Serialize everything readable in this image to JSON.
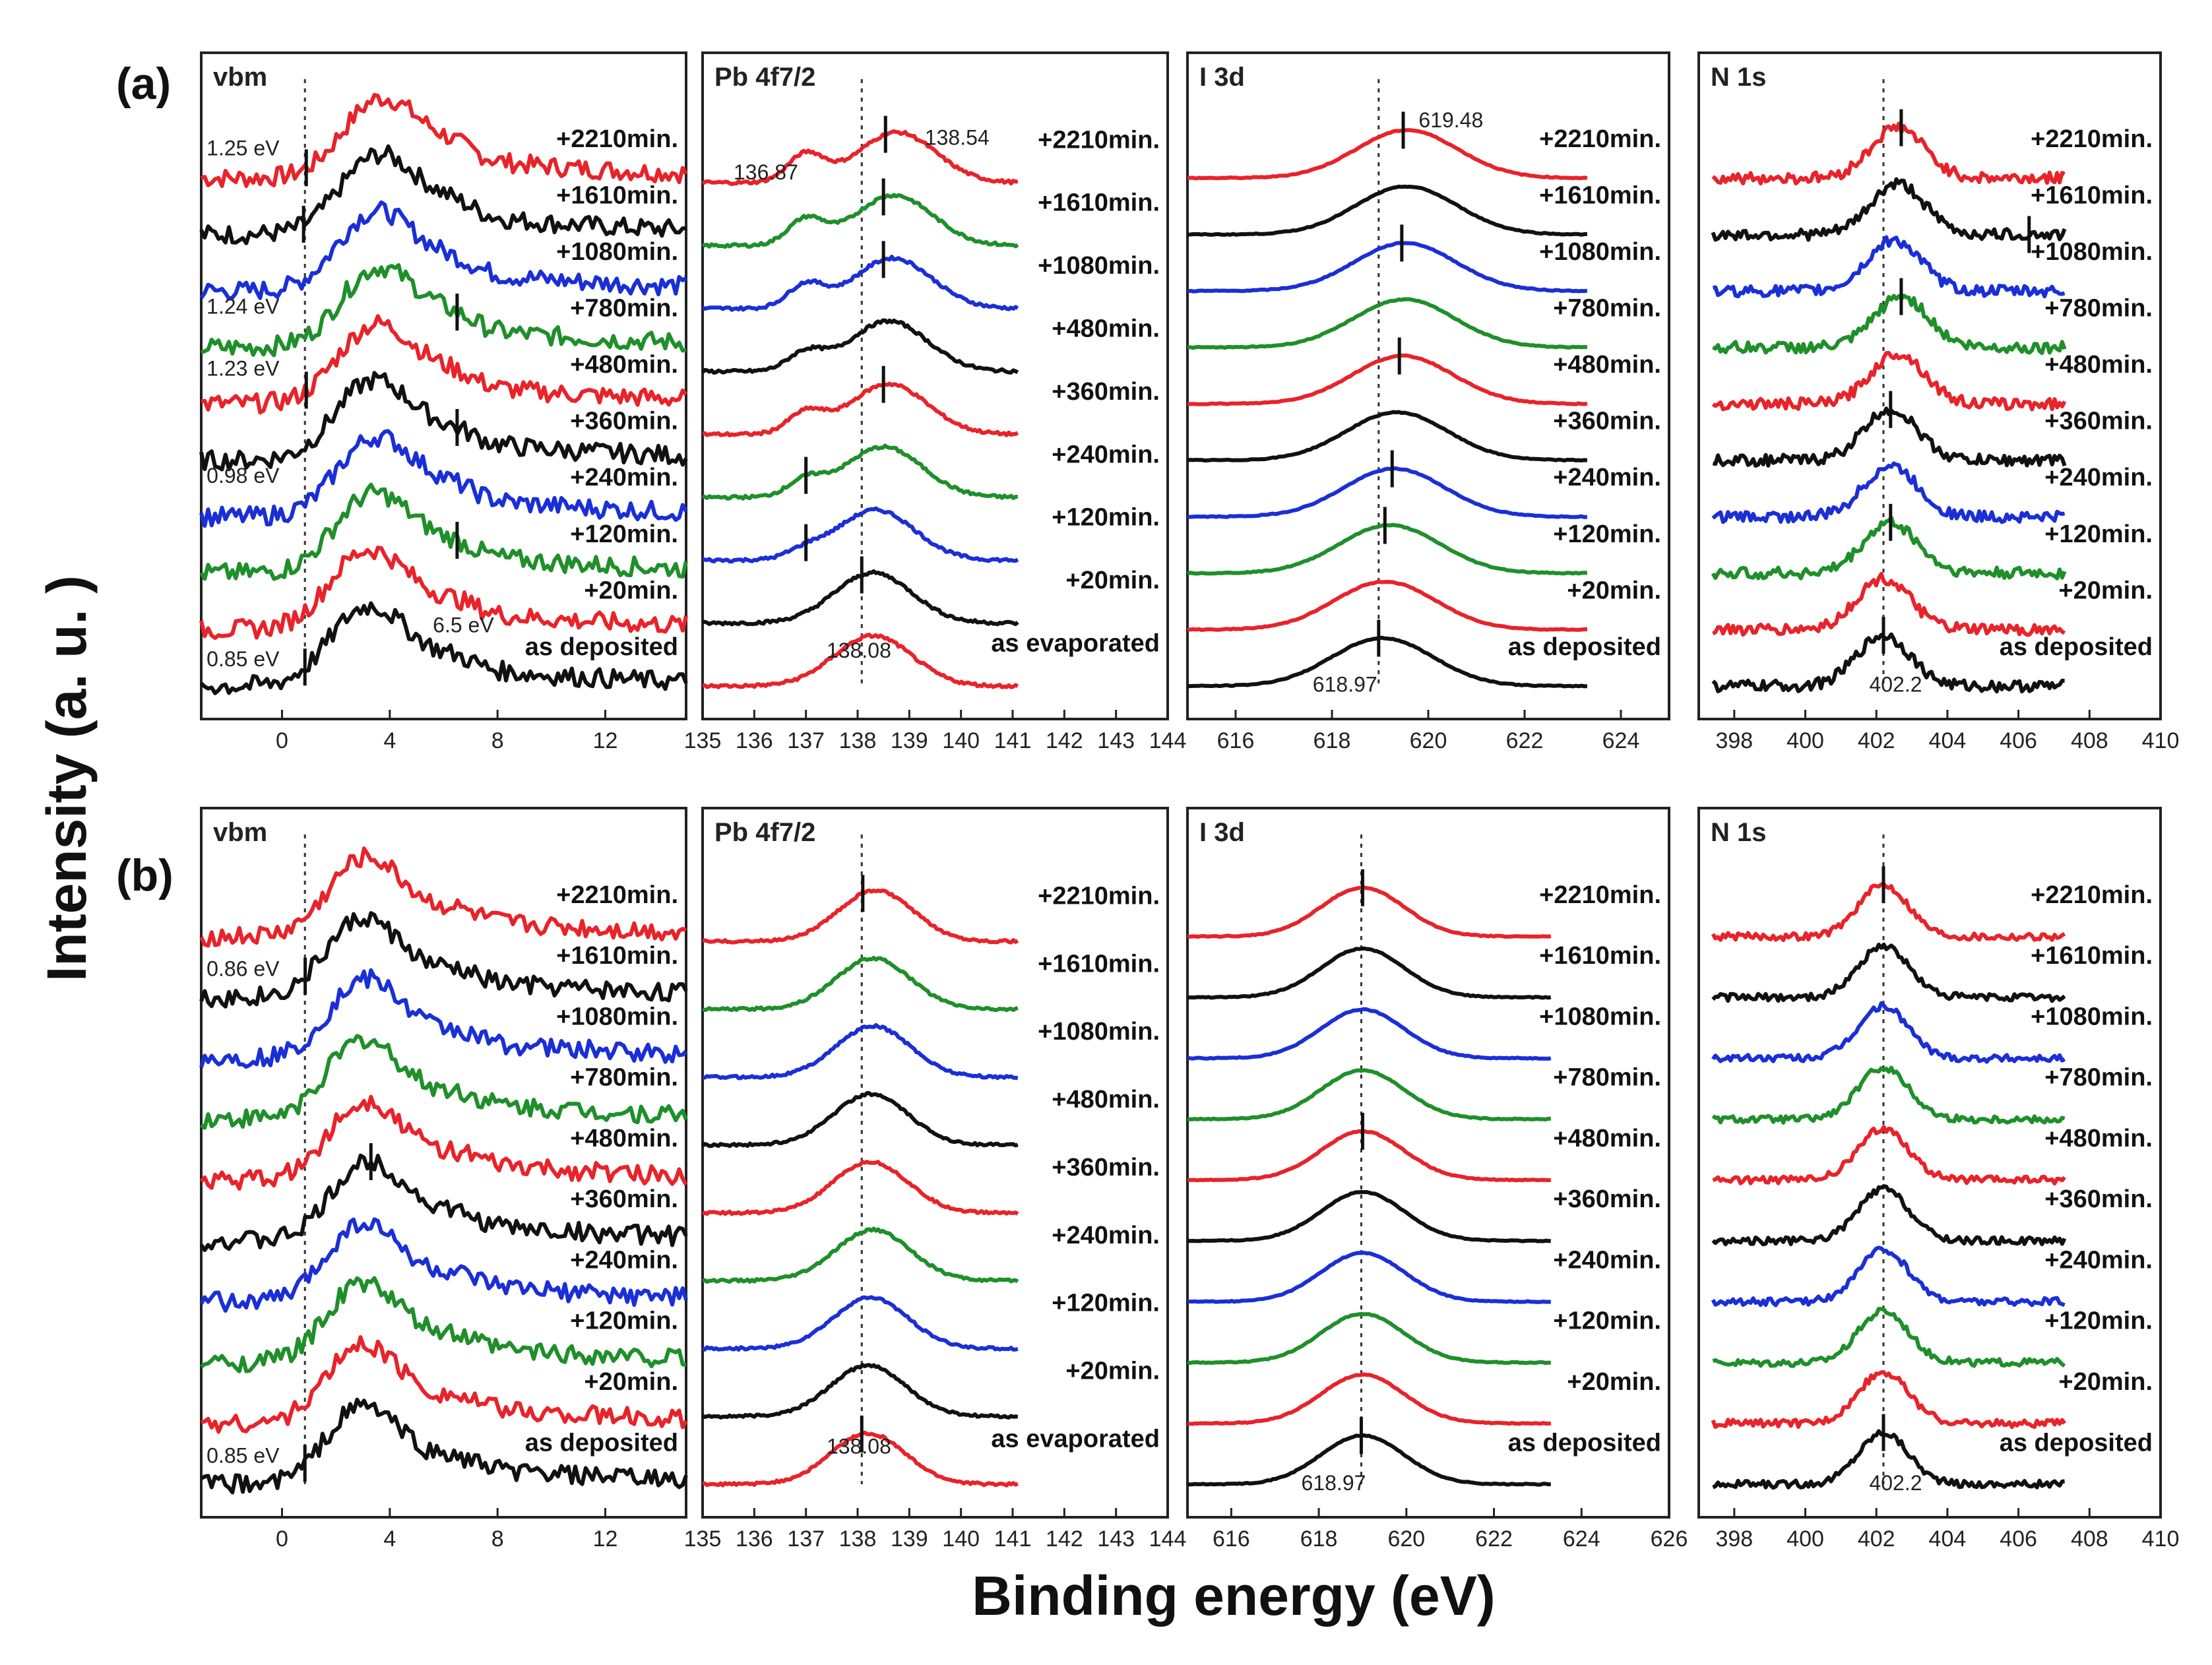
{
  "figure": {
    "ylabel": "Intensity (a. u. )",
    "xlabel": "Binding energy (eV)"
  },
  "colors": {
    "red": "#e8232a",
    "black": "#111111",
    "blue": "#1a2fd6",
    "green": "#1f8f2a"
  },
  "chart_data": [
    {
      "type": "line",
      "row": "(a)",
      "title": "vbm",
      "xlim": [
        -3,
        15
      ],
      "ticks": [
        0,
        4,
        8,
        12
      ],
      "vline": 0.85,
      "peak": 3.2,
      "width": 1.4,
      "spread": 1.2,
      "shape": "vbm",
      "noise": 0.28,
      "series": [
        {
          "name": "+2210min.",
          "color": "red",
          "peakShift": 0.5,
          "mark": 0.9
        },
        {
          "name": "+1610min.",
          "color": "black",
          "peakShift": 0.4,
          "mark": 0.8
        },
        {
          "name": "+1080min.",
          "color": "blue",
          "peakShift": 0.3,
          "mark": null
        },
        {
          "name": "+780min.",
          "color": "green",
          "peakShift": 0.4,
          "mark": 6.5
        },
        {
          "name": "+480min.",
          "color": "red",
          "peakShift": 0.3,
          "mark": 0.9
        },
        {
          "name": "+360min.",
          "color": "black",
          "peakShift": 0.2,
          "mark": 6.5
        },
        {
          "name": "+240min.",
          "color": "blue",
          "peakShift": 0.3,
          "mark": null
        },
        {
          "name": "+120min.",
          "color": "green",
          "peakShift": 0.2,
          "mark": 6.5
        },
        {
          "name": "+20min.",
          "color": "red",
          "peakShift": 0.0,
          "mark": null
        },
        {
          "name": "as deposited",
          "color": "black",
          "peakShift": 0.0,
          "mark": 0.85
        }
      ],
      "annotations": [
        {
          "text": "1.25 eV",
          "x": -2.8,
          "row": 0,
          "dy": 0.4
        },
        {
          "text": "1.24 eV",
          "x": -2.8,
          "row": 3,
          "dy": 0.6
        },
        {
          "text": "1.23 eV",
          "x": -2.8,
          "row": 4,
          "dy": 0.5
        },
        {
          "text": "0.98 eV",
          "x": -2.8,
          "row": 6,
          "dy": 0.6
        },
        {
          "text": "6.5 eV",
          "x": 5.6,
          "row": 8,
          "dy": -0.05
        },
        {
          "text": "0.85 eV",
          "x": -2.8,
          "row": 9,
          "dy": 0.35
        }
      ]
    },
    {
      "type": "line",
      "row": "(a)",
      "title": "Pb 4f7/2",
      "xlim": [
        135,
        144
      ],
      "ticks": [
        135,
        136,
        137,
        138,
        139,
        140,
        141,
        142,
        143,
        144
      ],
      "vline": 138.08,
      "peak": 138.3,
      "width": 0.75,
      "spread": 0.8,
      "shape": "pb",
      "noise": 0.06,
      "xmax": 141.1,
      "series": [
        {
          "name": "+2210min.",
          "color": "red",
          "peakShift": 0.46,
          "shoulder": 0.55,
          "mark": 138.54
        },
        {
          "name": "+1610min.",
          "color": "green",
          "peakShift": 0.4,
          "shoulder": 0.5,
          "mark": 138.5
        },
        {
          "name": "+1080min.",
          "color": "blue",
          "peakShift": 0.38,
          "shoulder": 0.45,
          "mark": 138.5
        },
        {
          "name": "+480min.",
          "color": "black",
          "peakShift": 0.3,
          "shoulder": 0.35,
          "mark": null
        },
        {
          "name": "+360min.",
          "color": "red",
          "peakShift": 0.3,
          "shoulder": 0.4,
          "mark": 138.5
        },
        {
          "name": "+240min.",
          "color": "green",
          "peakShift": 0.2,
          "shoulder": 0.3,
          "mark": 137.0
        },
        {
          "name": "+120min.",
          "color": "blue",
          "peakShift": 0.05,
          "shoulder": 0.15,
          "mark": 137.0
        },
        {
          "name": "+20min.",
          "color": "black",
          "peakShift": 0.0,
          "shoulder": 0.0,
          "mark": 138.08
        },
        {
          "name": "as evaporated",
          "color": "red",
          "peakShift": 0.0,
          "shoulder": 0.0,
          "mark": null
        }
      ],
      "annotations": [
        {
          "text": "136.87",
          "x": 135.6,
          "row": 0,
          "dy": 0.05
        },
        {
          "text": "138.54",
          "x": 139.3,
          "row": 0,
          "dy": 0.6
        },
        {
          "text": "138.08",
          "x": 137.4,
          "row": 8,
          "dy": 0.45
        }
      ]
    },
    {
      "type": "line",
      "row": "(a)",
      "title": "I 3d",
      "xlim": [
        615,
        625
      ],
      "ticks": [
        616,
        618,
        620,
        622,
        624
      ],
      "vline": 618.97,
      "peak": 619.05,
      "width": 1.05,
      "spread": 0.85,
      "shape": "gauss",
      "noise": 0.02,
      "xmin": 615.0,
      "xmax": 623.3,
      "series": [
        {
          "name": "+2210min.",
          "color": "red",
          "peakShift": 0.51,
          "mark": 619.48
        },
        {
          "name": "+1610min.",
          "color": "black",
          "peakShift": 0.5,
          "mark": null
        },
        {
          "name": "+1080min.",
          "color": "blue",
          "peakShift": 0.47,
          "mark": 619.45
        },
        {
          "name": "+780min.",
          "color": "green",
          "peakShift": 0.45,
          "mark": null
        },
        {
          "name": "+480min.",
          "color": "red",
          "peakShift": 0.42,
          "mark": 619.4
        },
        {
          "name": "+360min.",
          "color": "black",
          "peakShift": 0.3,
          "mark": null
        },
        {
          "name": "+240min.",
          "color": "blue",
          "peakShift": 0.25,
          "mark": 619.25
        },
        {
          "name": "+120min.",
          "color": "green",
          "peakShift": 0.15,
          "mark": 619.1
        },
        {
          "name": "+20min.",
          "color": "red",
          "peakShift": 0.05,
          "mark": null
        },
        {
          "name": "as deposited",
          "color": "black",
          "peakShift": 0.0,
          "mark": 618.97
        }
      ],
      "annotations": [
        {
          "text": "619.48",
          "x": 619.8,
          "row": 0,
          "dy": 0.9
        },
        {
          "text": "618.97",
          "x": 617.6,
          "row": 9,
          "dy": -0.1
        }
      ]
    },
    {
      "type": "line",
      "row": "(a)",
      "title": "N 1s",
      "xlim": [
        397,
        410
      ],
      "ticks": [
        398,
        400,
        402,
        404,
        406,
        408,
        410
      ],
      "vline": 402.2,
      "peak": 402.2,
      "width": 0.75,
      "spread": 0.9,
      "shape": "gauss",
      "noise": 0.22,
      "xmin": 397.4,
      "xmax": 407.3,
      "series": [
        {
          "name": "+2210min.",
          "color": "red",
          "peakShift": 0.4,
          "mark": 402.7
        },
        {
          "name": "+1610min.",
          "color": "black",
          "peakShift": 0.4,
          "mark": 406.3
        },
        {
          "name": "+1080min.",
          "color": "blue",
          "peakShift": 0.3,
          "mark": null
        },
        {
          "name": "+780min.",
          "color": "green",
          "peakShift": 0.5,
          "mark": 402.7
        },
        {
          "name": "+480min.",
          "color": "red",
          "peakShift": 0.4,
          "mark": null
        },
        {
          "name": "+360min.",
          "color": "black",
          "peakShift": 0.2,
          "mark": 402.4
        },
        {
          "name": "+240min.",
          "color": "blue",
          "peakShift": 0.2,
          "mark": null
        },
        {
          "name": "+120min.",
          "color": "green",
          "peakShift": 0.2,
          "mark": 402.4
        },
        {
          "name": "+20min.",
          "color": "red",
          "peakShift": 0.0,
          "mark": null
        },
        {
          "name": "as deposited",
          "color": "black",
          "peakShift": 0.0,
          "mark": 402.2
        }
      ],
      "annotations": [
        {
          "text": "402.2",
          "x": 401.8,
          "row": 9,
          "dy": -0.1
        }
      ]
    },
    {
      "type": "line",
      "row": "(b)",
      "title": "vbm",
      "xlim": [
        -3,
        15
      ],
      "ticks": [
        0,
        4,
        8,
        12
      ],
      "vline": 0.85,
      "peak": 3.0,
      "width": 1.3,
      "spread": 1.1,
      "shape": "vbm",
      "noise": 0.28,
      "series": [
        {
          "name": "+2210min.",
          "color": "red",
          "peakShift": 0.1,
          "mark": null
        },
        {
          "name": "+1610min.",
          "color": "black",
          "peakShift": 0.0,
          "mark": 0.86
        },
        {
          "name": "+1080min.",
          "color": "blue",
          "peakShift": 0.1,
          "mark": null
        },
        {
          "name": "+780min.",
          "color": "green",
          "peakShift": 0.0,
          "mark": null
        },
        {
          "name": "+480min.",
          "color": "red",
          "peakShift": 0.1,
          "mark": null
        },
        {
          "name": "+360min.",
          "color": "black",
          "peakShift": 0.2,
          "mark": 3.3
        },
        {
          "name": "+240min.",
          "color": "blue",
          "peakShift": 0.0,
          "mark": null
        },
        {
          "name": "+120min.",
          "color": "green",
          "peakShift": 0.0,
          "mark": null
        },
        {
          "name": "+20min.",
          "color": "red",
          "peakShift": 0.0,
          "mark": null
        },
        {
          "name": "as deposited",
          "color": "black",
          "peakShift": 0.0,
          "mark": 0.85
        }
      ],
      "annotations": [
        {
          "text": "0.86 eV",
          "x": -2.8,
          "row": 1,
          "dy": 0.35
        },
        {
          "text": "0.85 eV",
          "x": -2.8,
          "row": 9,
          "dy": 0.35
        }
      ]
    },
    {
      "type": "line",
      "row": "(b)",
      "title": "Pb 4f7/2",
      "xlim": [
        135,
        144
      ],
      "ticks": [
        135,
        136,
        137,
        138,
        139,
        140,
        141,
        142,
        143,
        144
      ],
      "vline": 138.08,
      "peak": 138.2,
      "width": 0.72,
      "spread": 0.75,
      "shape": "gauss",
      "noise": 0.05,
      "xmax": 141.1,
      "series": [
        {
          "name": "+2210min.",
          "color": "red",
          "peakShift": 0.15,
          "mark": 138.1
        },
        {
          "name": "+1610min.",
          "color": "green",
          "peakShift": 0.1,
          "mark": null
        },
        {
          "name": "+1080min.",
          "color": "blue",
          "peakShift": 0.1,
          "mark": null
        },
        {
          "name": "+480min.",
          "color": "black",
          "peakShift": 0.05,
          "mark": null
        },
        {
          "name": "+360min.",
          "color": "red",
          "peakShift": 0.05,
          "mark": null
        },
        {
          "name": "+240min.",
          "color": "green",
          "peakShift": 0.1,
          "mark": null
        },
        {
          "name": "+120min.",
          "color": "blue",
          "peakShift": 0.05,
          "mark": null
        },
        {
          "name": "+20min.",
          "color": "black",
          "peakShift": 0.0,
          "mark": null
        },
        {
          "name": "as evaporated",
          "color": "red",
          "peakShift": 0.0,
          "mark": 138.08
        }
      ],
      "annotations": [
        {
          "text": "138.08",
          "x": 137.4,
          "row": 8,
          "dy": 0.45
        }
      ]
    },
    {
      "type": "line",
      "row": "(b)",
      "title": "I 3d",
      "xlim": [
        615,
        626
      ],
      "ticks": [
        616,
        618,
        620,
        622,
        624,
        626
      ],
      "vline": 618.97,
      "peak": 619.0,
      "width": 0.95,
      "spread": 0.8,
      "shape": "gauss",
      "noise": 0.02,
      "xmin": 615.0,
      "xmax": 623.3,
      "series": [
        {
          "name": "+2210min.",
          "color": "red",
          "peakShift": 0.0,
          "mark": 619.0
        },
        {
          "name": "+1610min.",
          "color": "black",
          "peakShift": 0.0,
          "mark": null
        },
        {
          "name": "+1080min.",
          "color": "blue",
          "peakShift": 0.0,
          "mark": null
        },
        {
          "name": "+780min.",
          "color": "green",
          "peakShift": 0.0,
          "mark": null
        },
        {
          "name": "+480min.",
          "color": "red",
          "peakShift": 0.0,
          "mark": 619.0
        },
        {
          "name": "+360min.",
          "color": "black",
          "peakShift": 0.0,
          "mark": null
        },
        {
          "name": "+240min.",
          "color": "blue",
          "peakShift": 0.0,
          "mark": null
        },
        {
          "name": "+120min.",
          "color": "green",
          "peakShift": 0.0,
          "mark": null
        },
        {
          "name": "+20min.",
          "color": "red",
          "peakShift": 0.0,
          "mark": null
        },
        {
          "name": "as deposited",
          "color": "black",
          "peakShift": 0.0,
          "mark": 618.97
        }
      ],
      "annotations": [
        {
          "text": "618.97",
          "x": 617.6,
          "row": 9,
          "dy": -0.1
        }
      ]
    },
    {
      "type": "line",
      "row": "(b)",
      "title": "N 1s",
      "xlim": [
        397,
        410
      ],
      "ticks": [
        398,
        400,
        402,
        404,
        406,
        408,
        410
      ],
      "vline": 402.2,
      "peak": 402.2,
      "width": 0.7,
      "spread": 0.85,
      "shape": "gauss",
      "noise": 0.14,
      "xmin": 397.4,
      "xmax": 407.3,
      "series": [
        {
          "name": "+2210min.",
          "color": "red",
          "peakShift": 0.0,
          "mark": 402.2
        },
        {
          "name": "+1610min.",
          "color": "black",
          "peakShift": 0.0,
          "mark": null
        },
        {
          "name": "+1080min.",
          "color": "blue",
          "peakShift": 0.0,
          "mark": null
        },
        {
          "name": "+780min.",
          "color": "green",
          "peakShift": 0.0,
          "mark": null
        },
        {
          "name": "+480min.",
          "color": "red",
          "peakShift": 0.0,
          "mark": null
        },
        {
          "name": "+360min.",
          "color": "black",
          "peakShift": 0.0,
          "mark": null
        },
        {
          "name": "+240min.",
          "color": "blue",
          "peakShift": 0.0,
          "mark": null
        },
        {
          "name": "+120min.",
          "color": "green",
          "peakShift": 0.0,
          "mark": null
        },
        {
          "name": "+20min.",
          "color": "red",
          "peakShift": 0.0,
          "mark": null
        },
        {
          "name": "as deposited",
          "color": "black",
          "peakShift": 0.0,
          "mark": 402.2
        }
      ],
      "annotations": [
        {
          "text": "402.2",
          "x": 401.8,
          "row": 9,
          "dy": -0.1
        }
      ]
    }
  ]
}
